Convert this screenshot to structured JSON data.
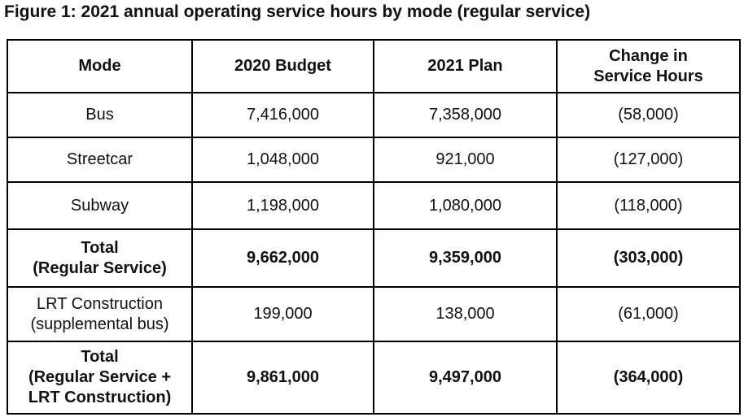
{
  "title": "Figure 1: 2021 annual operating service hours by mode (regular service)",
  "table": {
    "columns": [
      "Mode",
      "2020 Budget",
      "2021 Plan",
      [
        "Change in",
        "Service Hours"
      ]
    ],
    "rows": [
      {
        "mode": "Bus",
        "budget_2020": "7,416,000",
        "plan_2021": "7,358,000",
        "change": "(58,000)",
        "bold": false
      },
      {
        "mode": "Streetcar",
        "budget_2020": "1,048,000",
        "plan_2021": "921,000",
        "change": "(127,000)",
        "bold": false
      },
      {
        "mode": "Subway",
        "budget_2020": "1,198,000",
        "plan_2021": "1,080,000",
        "change": "(118,000)",
        "bold": false
      },
      {
        "mode": [
          "Total",
          "(Regular Service)"
        ],
        "budget_2020": "9,662,000",
        "plan_2021": "9,359,000",
        "change": "(303,000)",
        "bold": true
      },
      {
        "mode": [
          "LRT Construction",
          "(supplemental bus)"
        ],
        "budget_2020": "199,000",
        "plan_2021": "138,000",
        "change": "(61,000)",
        "bold": false
      },
      {
        "mode": [
          "Total",
          "(Regular Service +",
          "LRT Construction)"
        ],
        "budget_2020": "9,861,000",
        "plan_2021": "9,497,000",
        "change": "(364,000)",
        "bold": true
      }
    ]
  },
  "colors": {
    "text": "#111111",
    "border": "#000000",
    "background": "#ffffff"
  }
}
